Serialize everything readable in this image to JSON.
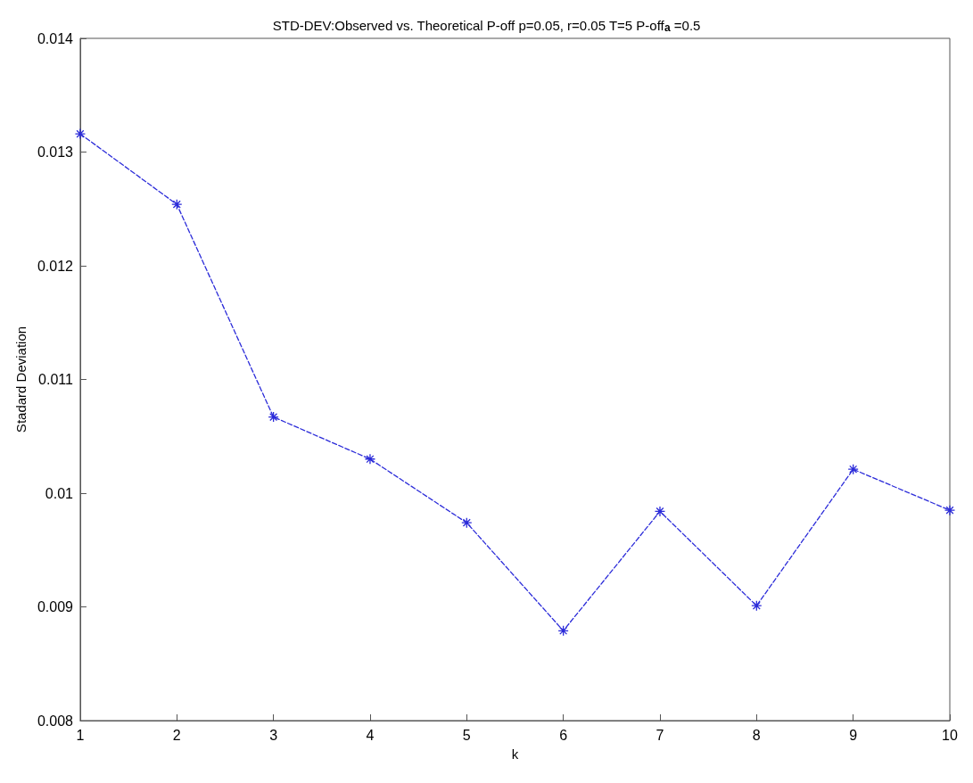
{
  "chart_data": {
    "type": "line",
    "title": "STD-DEV:Observed vs. Theoretical P-off p=0.05, r=0.05 T=5 P-off$_{a}$ =0.5",
    "xlabel": "k",
    "ylabel": "Stadard Deviation",
    "x": [
      1,
      2,
      3,
      4,
      5,
      6,
      7,
      8,
      9,
      10
    ],
    "series": [
      {
        "color": "#2b2bd9",
        "values": [
          0.01316,
          0.01254,
          0.01067,
          0.0103,
          0.00974,
          0.00879,
          0.00984,
          0.00901,
          0.01021,
          0.00985
        ]
      }
    ],
    "xlim": [
      1,
      10
    ],
    "xticks": [
      1,
      2,
      3,
      4,
      5,
      6,
      7,
      8,
      9,
      10
    ],
    "ylim": [
      0.008,
      0.014
    ],
    "yticks": [
      0.008,
      0.009,
      0.01,
      0.011,
      0.012,
      0.013,
      0.014
    ],
    "grid": false,
    "marker": "cross",
    "line_style": "dashed"
  }
}
